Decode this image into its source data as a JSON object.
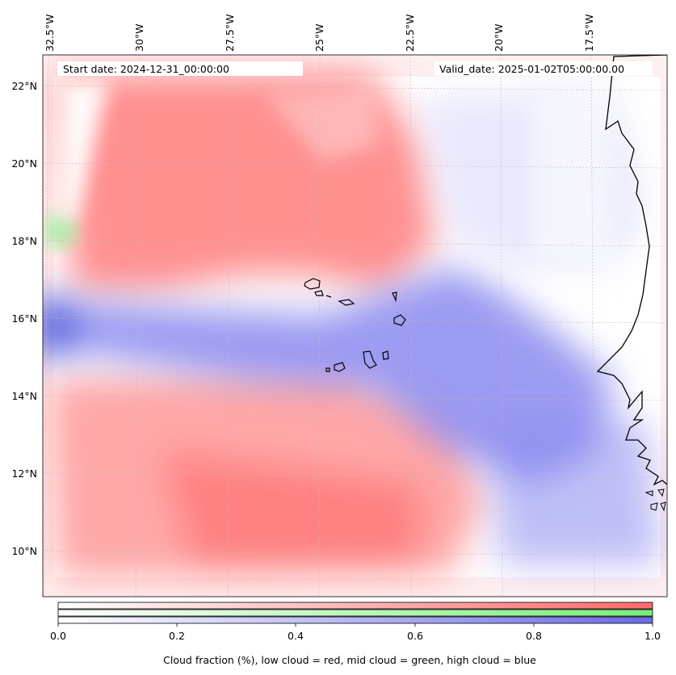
{
  "map": {
    "start_date": "Start date: 2024-12-31_00:00:00",
    "valid_date": "Valid_date: 2025-01-02T05:00:00.00",
    "lon_labels": [
      "32.5°W",
      "30°W",
      "27.5°W",
      "25°W",
      "22.5°W",
      "20°W",
      "17.5°W"
    ],
    "lat_labels": [
      "22°N",
      "20°N",
      "18°N",
      "16°N",
      "14°N",
      "12°N",
      "10°N"
    ]
  },
  "colorbar": {
    "ticks": [
      "0.0",
      "0.2",
      "0.4",
      "0.6",
      "0.8",
      "1.0"
    ],
    "label": "Cloud fraction (%), low cloud = red, mid cloud = green, high cloud = blue",
    "colors": {
      "low": "#ff6a6a",
      "mid": "#77ee77",
      "high": "#6a6ae8"
    }
  }
}
